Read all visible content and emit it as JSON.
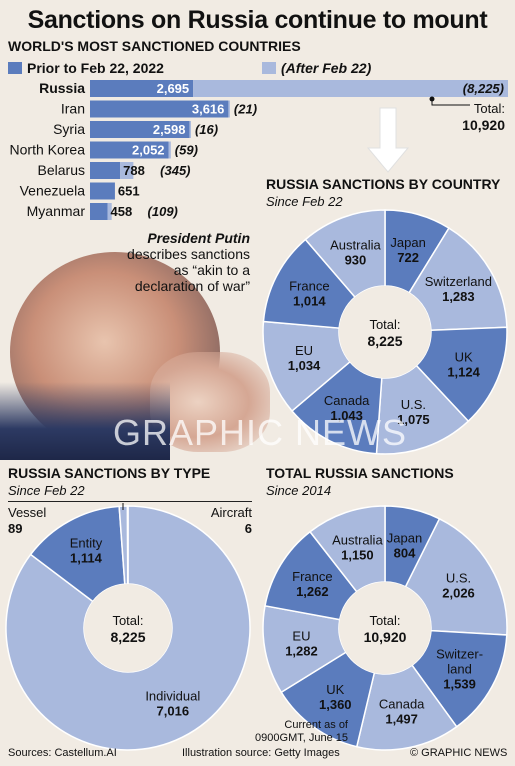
{
  "title": "Sanctions on Russia continue to mount",
  "colors": {
    "dark": "#5b7cbd",
    "light": "#a9b9dd",
    "navy": "#1f3a6e",
    "bg": "#f1ebe3"
  },
  "most_sanctioned": {
    "heading": "WORLD'S MOST SANCTIONED COUNTRIES",
    "legend_prior": "Prior to Feb 22, 2022",
    "legend_after": "(After Feb 22)",
    "total_label": "Total:",
    "total_value": "10,920"
  },
  "quote": {
    "speaker": "President Putin",
    "text": "describes sanctions as “akin to a declaration of war”"
  },
  "by_country": {
    "heading": "RUSSIA SANCTIONS BY COUNTRY",
    "subheading": "Since Feb 22",
    "total_label": "Total:",
    "total_value": "8,225"
  },
  "by_type": {
    "heading": "RUSSIA SANCTIONS BY TYPE",
    "subheading": "Since Feb 22",
    "total_label": "Total:",
    "total_value": "8,225"
  },
  "total_russia": {
    "heading": "TOTAL RUSSIA SANCTIONS",
    "subheading": "Since 2014",
    "total_label": "Total:",
    "total_value": "10,920"
  },
  "watermark": "GRAPHIC NEWS",
  "footer": {
    "sources": "Sources: Castellum.AI",
    "current_line1": "Current as of",
    "current_line2": "0900GMT, June 15",
    "illustration": "Illustration source: Getty Images",
    "copyright": "© GRAPHIC NEWS"
  },
  "chart_data": [
    {
      "type": "bar",
      "title": "WORLD'S MOST SANCTIONED COUNTRIES",
      "categories": [
        "Russia",
        "Iran",
        "Syria",
        "North Korea",
        "Belarus",
        "Venezuela",
        "Myanmar"
      ],
      "series": [
        {
          "name": "Prior to Feb 22, 2022",
          "values": [
            2695,
            3616,
            2598,
            2052,
            788,
            651,
            458
          ],
          "labels": [
            "2,695",
            "3,616",
            "2,598",
            "2,052",
            "788",
            "651",
            "458"
          ]
        },
        {
          "name": "After Feb 22",
          "values": [
            8225,
            21,
            16,
            59,
            345,
            0,
            109
          ],
          "labels": [
            "(8,225)",
            "(21)",
            "(16)",
            "(59)",
            "(345)",
            "",
            "(109)"
          ]
        }
      ],
      "stacked": true,
      "xlim": [
        0,
        10920
      ]
    },
    {
      "type": "pie",
      "title": "RUSSIA SANCTIONS BY COUNTRY",
      "slices": [
        {
          "label": "Japan",
          "value": 722,
          "value_label": "722",
          "shade": "dark"
        },
        {
          "label": "Switzerland",
          "value": 1283,
          "value_label": "1,283",
          "shade": "light"
        },
        {
          "label": "UK",
          "value": 1124,
          "value_label": "1,124",
          "shade": "dark"
        },
        {
          "label": "U.S.",
          "value": 1075,
          "value_label": "1,075",
          "shade": "light"
        },
        {
          "label": "Canada",
          "value": 1043,
          "value_label": "1,043",
          "shade": "dark"
        },
        {
          "label": "EU",
          "value": 1034,
          "value_label": "1,034",
          "shade": "light"
        },
        {
          "label": "France",
          "value": 1014,
          "value_label": "1,014",
          "shade": "dark"
        },
        {
          "label": "Australia",
          "value": 930,
          "value_label": "930",
          "shade": "light"
        }
      ]
    },
    {
      "type": "pie",
      "title": "RUSSIA SANCTIONS BY TYPE",
      "slices": [
        {
          "label": "Individual",
          "value": 7016,
          "value_label": "7,016",
          "shade": "light"
        },
        {
          "label": "Entity",
          "value": 1114,
          "value_label": "1,114",
          "shade": "dark"
        },
        {
          "label": "Vessel",
          "value": 89,
          "value_label": "89",
          "shade": "light"
        },
        {
          "label": "Aircraft",
          "value": 6,
          "value_label": "6",
          "shade": "dark"
        }
      ]
    },
    {
      "type": "pie",
      "title": "TOTAL RUSSIA SANCTIONS",
      "slices": [
        {
          "label": "Japan",
          "value": 804,
          "value_label": "804",
          "shade": "dark"
        },
        {
          "label": "U.S.",
          "value": 2026,
          "value_label": "2,026",
          "shade": "light"
        },
        {
          "label": "Switzer-land",
          "value": 1539,
          "value_label": "1,539",
          "shade": "dark"
        },
        {
          "label": "Canada",
          "value": 1497,
          "value_label": "1,497",
          "shade": "light"
        },
        {
          "label": "UK",
          "value": 1360,
          "value_label": "1,360",
          "shade": "dark"
        },
        {
          "label": "EU",
          "value": 1282,
          "value_label": "1,282",
          "shade": "light"
        },
        {
          "label": "France",
          "value": 1262,
          "value_label": "1,262",
          "shade": "dark"
        },
        {
          "label": "Australia",
          "value": 1150,
          "value_label": "1,150",
          "shade": "light"
        }
      ]
    }
  ]
}
